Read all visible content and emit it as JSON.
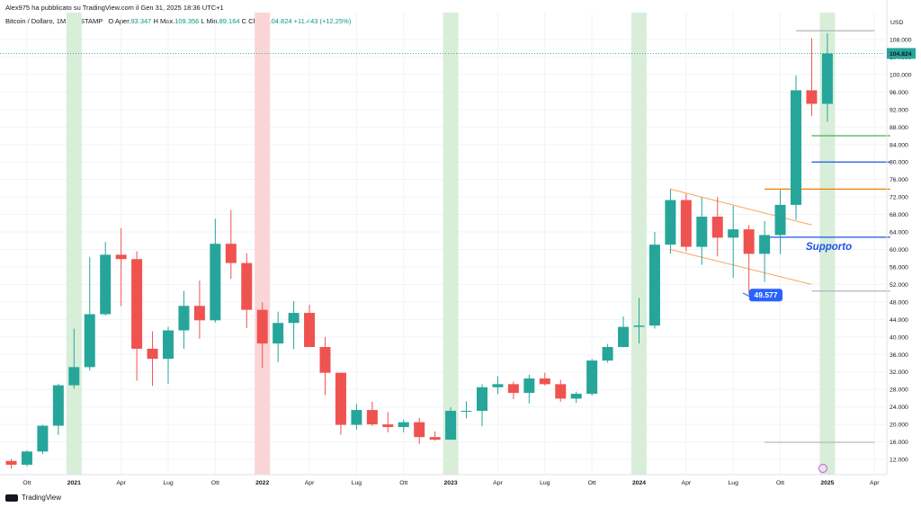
{
  "header": {
    "publisher_line": "Alex975 ha pubblicato su TradingView.com il Gen 31, 2025 18:36 UTC+1",
    "symbol_line": "Bitcoin / Dollaro, 1M, BITSTAMP",
    "o_label": "O",
    "o_text": "Aper.",
    "o_value": "93.347",
    "h_label": "H",
    "h_text": "Max.",
    "h_value": "109.356",
    "l_label": "L",
    "l_text": "Min.",
    "l_value": "89.164",
    "c_label": "C",
    "c_text": "Chius.",
    "c_value": "104.824",
    "change_value": "+11.443 (+12,25%)"
  },
  "footer": {
    "brand": "TradingView"
  },
  "colors": {
    "up": "#26a69a",
    "down": "#ef5350",
    "green_band": "#d8eed9",
    "red_band": "#fbd5d5",
    "price_tag": "#26a69a",
    "callout": "#2962ff"
  },
  "chart_data": {
    "type": "candlestick",
    "currency": "USD",
    "y_axis": {
      "unit_label": "USD",
      "ylim": [
        8000,
        114000
      ],
      "ticks": [
        12000,
        16000,
        20000,
        24000,
        28000,
        32000,
        36000,
        40000,
        44000,
        48000,
        52000,
        56000,
        60000,
        64000,
        68000,
        72000,
        76000,
        80000,
        84000,
        88000,
        92000,
        96000,
        100000,
        104000,
        108000
      ],
      "tick_labels": [
        "12.000",
        "16.000",
        "20.000",
        "24.000",
        "28.000",
        "32.000",
        "36.000",
        "40.000",
        "44.000",
        "48.000",
        "52.000",
        "56.000",
        "60.000",
        "64.000",
        "68.000",
        "72.000",
        "76.000",
        "80.000",
        "84.000",
        "88.000",
        "92.000",
        "96.000",
        "100.000",
        "104.000",
        "108.000"
      ]
    },
    "x_axis": {
      "range": [
        "2020-09",
        "2025-05"
      ],
      "ticks": [
        {
          "date": "2020-10",
          "label": "Ott"
        },
        {
          "date": "2021-01",
          "label": "2021"
        },
        {
          "date": "2021-04",
          "label": "Apr"
        },
        {
          "date": "2021-07",
          "label": "Lug"
        },
        {
          "date": "2021-10",
          "label": "Ott"
        },
        {
          "date": "2022-01",
          "label": "2022"
        },
        {
          "date": "2022-04",
          "label": "Apr"
        },
        {
          "date": "2022-07",
          "label": "Lug"
        },
        {
          "date": "2022-10",
          "label": "Ott"
        },
        {
          "date": "2023-01",
          "label": "2023"
        },
        {
          "date": "2023-04",
          "label": "Apr"
        },
        {
          "date": "2023-07",
          "label": "Lug"
        },
        {
          "date": "2023-10",
          "label": "Ott"
        },
        {
          "date": "2024-01",
          "label": "2024"
        },
        {
          "date": "2024-04",
          "label": "Apr"
        },
        {
          "date": "2024-07",
          "label": "Lug"
        },
        {
          "date": "2024-10",
          "label": "Ott"
        },
        {
          "date": "2025-01",
          "label": "2025"
        },
        {
          "date": "2025-04",
          "label": "Apr"
        }
      ]
    },
    "candles": [
      {
        "date": "2020-09",
        "o": 11650,
        "h": 12100,
        "l": 9900,
        "c": 10780
      },
      {
        "date": "2020-10",
        "o": 10780,
        "h": 14100,
        "l": 10400,
        "c": 13800
      },
      {
        "date": "2020-11",
        "o": 13800,
        "h": 19900,
        "l": 13200,
        "c": 19700
      },
      {
        "date": "2020-12",
        "o": 19700,
        "h": 29300,
        "l": 17600,
        "c": 28950
      },
      {
        "date": "2021-01",
        "o": 28950,
        "h": 41900,
        "l": 28200,
        "c": 33100
      },
      {
        "date": "2021-02",
        "o": 33100,
        "h": 58300,
        "l": 32300,
        "c": 45200
      },
      {
        "date": "2021-03",
        "o": 45200,
        "h": 61700,
        "l": 44900,
        "c": 58800
      },
      {
        "date": "2021-04",
        "o": 58800,
        "h": 64900,
        "l": 47000,
        "c": 57800
      },
      {
        "date": "2021-05",
        "o": 57800,
        "h": 59600,
        "l": 30000,
        "c": 37300
      },
      {
        "date": "2021-06",
        "o": 37300,
        "h": 41300,
        "l": 28800,
        "c": 35000
      },
      {
        "date": "2021-07",
        "o": 35000,
        "h": 42300,
        "l": 29300,
        "c": 41500
      },
      {
        "date": "2021-08",
        "o": 41500,
        "h": 50500,
        "l": 37300,
        "c": 47100
      },
      {
        "date": "2021-09",
        "o": 47100,
        "h": 52900,
        "l": 39600,
        "c": 43800
      },
      {
        "date": "2021-10",
        "o": 43800,
        "h": 67000,
        "l": 43300,
        "c": 61300
      },
      {
        "date": "2021-11",
        "o": 61300,
        "h": 69000,
        "l": 53300,
        "c": 56900
      },
      {
        "date": "2021-12",
        "o": 56900,
        "h": 59100,
        "l": 42000,
        "c": 46200
      },
      {
        "date": "2022-01",
        "o": 46200,
        "h": 47900,
        "l": 32900,
        "c": 38500
      },
      {
        "date": "2022-02",
        "o": 38500,
        "h": 45800,
        "l": 34300,
        "c": 43200
      },
      {
        "date": "2022-03",
        "o": 43200,
        "h": 48200,
        "l": 37200,
        "c": 45500
      },
      {
        "date": "2022-04",
        "o": 45500,
        "h": 47400,
        "l": 37700,
        "c": 37700
      },
      {
        "date": "2022-05",
        "o": 37700,
        "h": 40000,
        "l": 26700,
        "c": 31800
      },
      {
        "date": "2022-06",
        "o": 31800,
        "h": 31900,
        "l": 17600,
        "c": 19900
      },
      {
        "date": "2022-07",
        "o": 19900,
        "h": 24700,
        "l": 18800,
        "c": 23300
      },
      {
        "date": "2022-08",
        "o": 23300,
        "h": 25200,
        "l": 19600,
        "c": 20000
      },
      {
        "date": "2022-09",
        "o": 20000,
        "h": 22800,
        "l": 18200,
        "c": 19400
      },
      {
        "date": "2022-10",
        "o": 19400,
        "h": 21100,
        "l": 18200,
        "c": 20500
      },
      {
        "date": "2022-11",
        "o": 20500,
        "h": 21500,
        "l": 15500,
        "c": 17100
      },
      {
        "date": "2022-12",
        "o": 17100,
        "h": 18400,
        "l": 16300,
        "c": 16500
      },
      {
        "date": "2023-01",
        "o": 16500,
        "h": 23900,
        "l": 16500,
        "c": 23100
      },
      {
        "date": "2023-02",
        "o": 23100,
        "h": 25300,
        "l": 21400,
        "c": 23100
      },
      {
        "date": "2023-03",
        "o": 23100,
        "h": 29200,
        "l": 19600,
        "c": 28500
      },
      {
        "date": "2023-04",
        "o": 28500,
        "h": 31000,
        "l": 26900,
        "c": 29200
      },
      {
        "date": "2023-05",
        "o": 29200,
        "h": 29800,
        "l": 25800,
        "c": 27200
      },
      {
        "date": "2023-06",
        "o": 27200,
        "h": 31400,
        "l": 24800,
        "c": 30500
      },
      {
        "date": "2023-07",
        "o": 30500,
        "h": 31800,
        "l": 28900,
        "c": 29200
      },
      {
        "date": "2023-08",
        "o": 29200,
        "h": 30200,
        "l": 25200,
        "c": 25900
      },
      {
        "date": "2023-09",
        "o": 25900,
        "h": 27500,
        "l": 24900,
        "c": 27000
      },
      {
        "date": "2023-10",
        "o": 27000,
        "h": 35000,
        "l": 26600,
        "c": 34600
      },
      {
        "date": "2023-11",
        "o": 34600,
        "h": 38400,
        "l": 34100,
        "c": 37700
      },
      {
        "date": "2023-12",
        "o": 37700,
        "h": 44700,
        "l": 37600,
        "c": 42300
      },
      {
        "date": "2024-01",
        "o": 42300,
        "h": 48900,
        "l": 38500,
        "c": 42600
      },
      {
        "date": "2024-02",
        "o": 42600,
        "h": 64000,
        "l": 41900,
        "c": 61100
      },
      {
        "date": "2024-03",
        "o": 61100,
        "h": 73800,
        "l": 59000,
        "c": 71300
      },
      {
        "date": "2024-04",
        "o": 71300,
        "h": 72700,
        "l": 59600,
        "c": 60600
      },
      {
        "date": "2024-05",
        "o": 60600,
        "h": 71900,
        "l": 56500,
        "c": 67500
      },
      {
        "date": "2024-06",
        "o": 67500,
        "h": 72000,
        "l": 58400,
        "c": 62700
      },
      {
        "date": "2024-07",
        "o": 62700,
        "h": 70000,
        "l": 53500,
        "c": 64600
      },
      {
        "date": "2024-08",
        "o": 64600,
        "h": 65600,
        "l": 49600,
        "c": 59000
      },
      {
        "date": "2024-09",
        "o": 59000,
        "h": 66500,
        "l": 52600,
        "c": 63300
      },
      {
        "date": "2024-10",
        "o": 63300,
        "h": 73600,
        "l": 58900,
        "c": 70200
      },
      {
        "date": "2024-11",
        "o": 70200,
        "h": 99800,
        "l": 66800,
        "c": 96400
      },
      {
        "date": "2024-12",
        "o": 96400,
        "h": 108300,
        "l": 90500,
        "c": 93300
      },
      {
        "date": "2025-01",
        "o": 93300,
        "h": 109400,
        "l": 89200,
        "c": 104800
      }
    ],
    "last_price_label": "104.824",
    "last_price": 104824,
    "annotations": {
      "support_text": "Supporto",
      "callout_text": "49.577",
      "callout_value": 49577
    },
    "vertical_bands": [
      {
        "date": "2021-01",
        "color": "green"
      },
      {
        "date": "2022-01",
        "color": "red"
      },
      {
        "date": "2023-01",
        "color": "green"
      },
      {
        "date": "2024-01",
        "color": "green"
      },
      {
        "date": "2025-01",
        "color": "green"
      }
    ],
    "horizontal_levels": [
      {
        "from": "2024-11",
        "to": "2025-04",
        "y": 110000,
        "color": "#b2b5be"
      },
      {
        "from": "2024-12",
        "to": "2025-05",
        "y": 86000,
        "color": "#4caf50"
      },
      {
        "from": "2024-12",
        "to": "2025-05",
        "y": 80000,
        "color": "#1e53e5"
      },
      {
        "from": "2024-09",
        "to": "2025-05",
        "y": 73800,
        "color": "#f57c00"
      },
      {
        "from": "2024-09",
        "to": "2025-05",
        "y": 62800,
        "color": "#1e53e5"
      },
      {
        "from": "2024-12",
        "to": "2025-05",
        "y": 50500,
        "color": "#b2b5be"
      },
      {
        "from": "2024-09",
        "to": "2025-04",
        "y": 15900,
        "color": "#b2b5be"
      }
    ],
    "channel_lines": [
      {
        "from": [
          "2024-03",
          73800
        ],
        "to": [
          "2024-12",
          65600
        ],
        "color": "#f7a35c"
      },
      {
        "from": [
          "2024-03",
          60000
        ],
        "to": [
          "2024-12",
          52000
        ],
        "color": "#f7a35c"
      }
    ],
    "grid": true
  }
}
